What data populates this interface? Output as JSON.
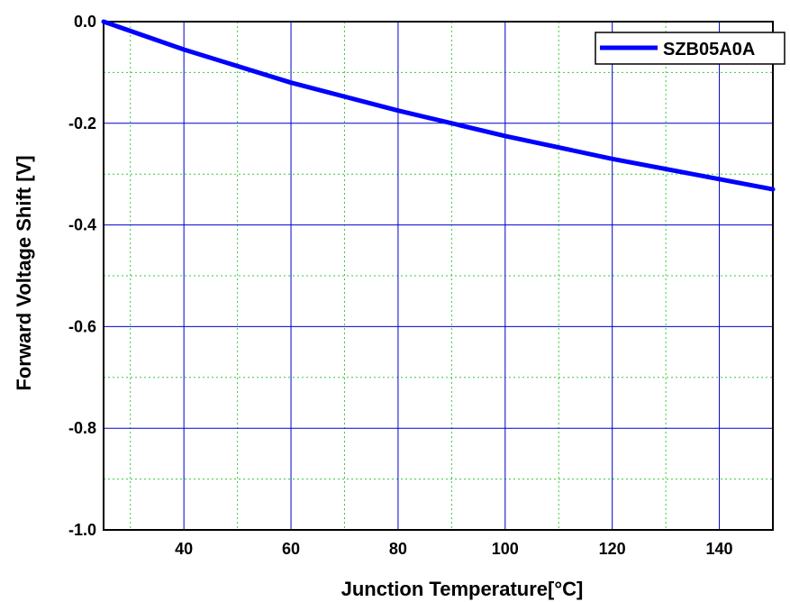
{
  "chart_data": {
    "type": "line",
    "title": "",
    "xlabel": "Junction Temperature[°C]",
    "ylabel": "Forward Voltage Shift [V]",
    "xlim": [
      25,
      150
    ],
    "ylim": [
      -1.0,
      0.0
    ],
    "x_ticks": [
      40,
      60,
      80,
      100,
      120,
      140
    ],
    "y_ticks": [
      0.0,
      -0.2,
      -0.4,
      -0.6,
      -0.8,
      -1.0
    ],
    "y_tick_labels": [
      "0.0",
      "-0.2",
      "-0.4",
      "-0.6",
      "-0.8",
      "-1.0"
    ],
    "grid": true,
    "legend_position": "top-right",
    "series": [
      {
        "name": "SZB05A0A",
        "color": "#0000ff",
        "x": [
          25,
          40,
          60,
          80,
          100,
          120,
          140,
          150
        ],
        "y": [
          0.0,
          -0.055,
          -0.12,
          -0.175,
          -0.225,
          -0.27,
          -0.31,
          -0.33
        ]
      }
    ]
  },
  "colors": {
    "major_grid": "#0000cc",
    "minor_grid": "#33cc33",
    "axis": "#000000",
    "series": "#0000ff"
  }
}
